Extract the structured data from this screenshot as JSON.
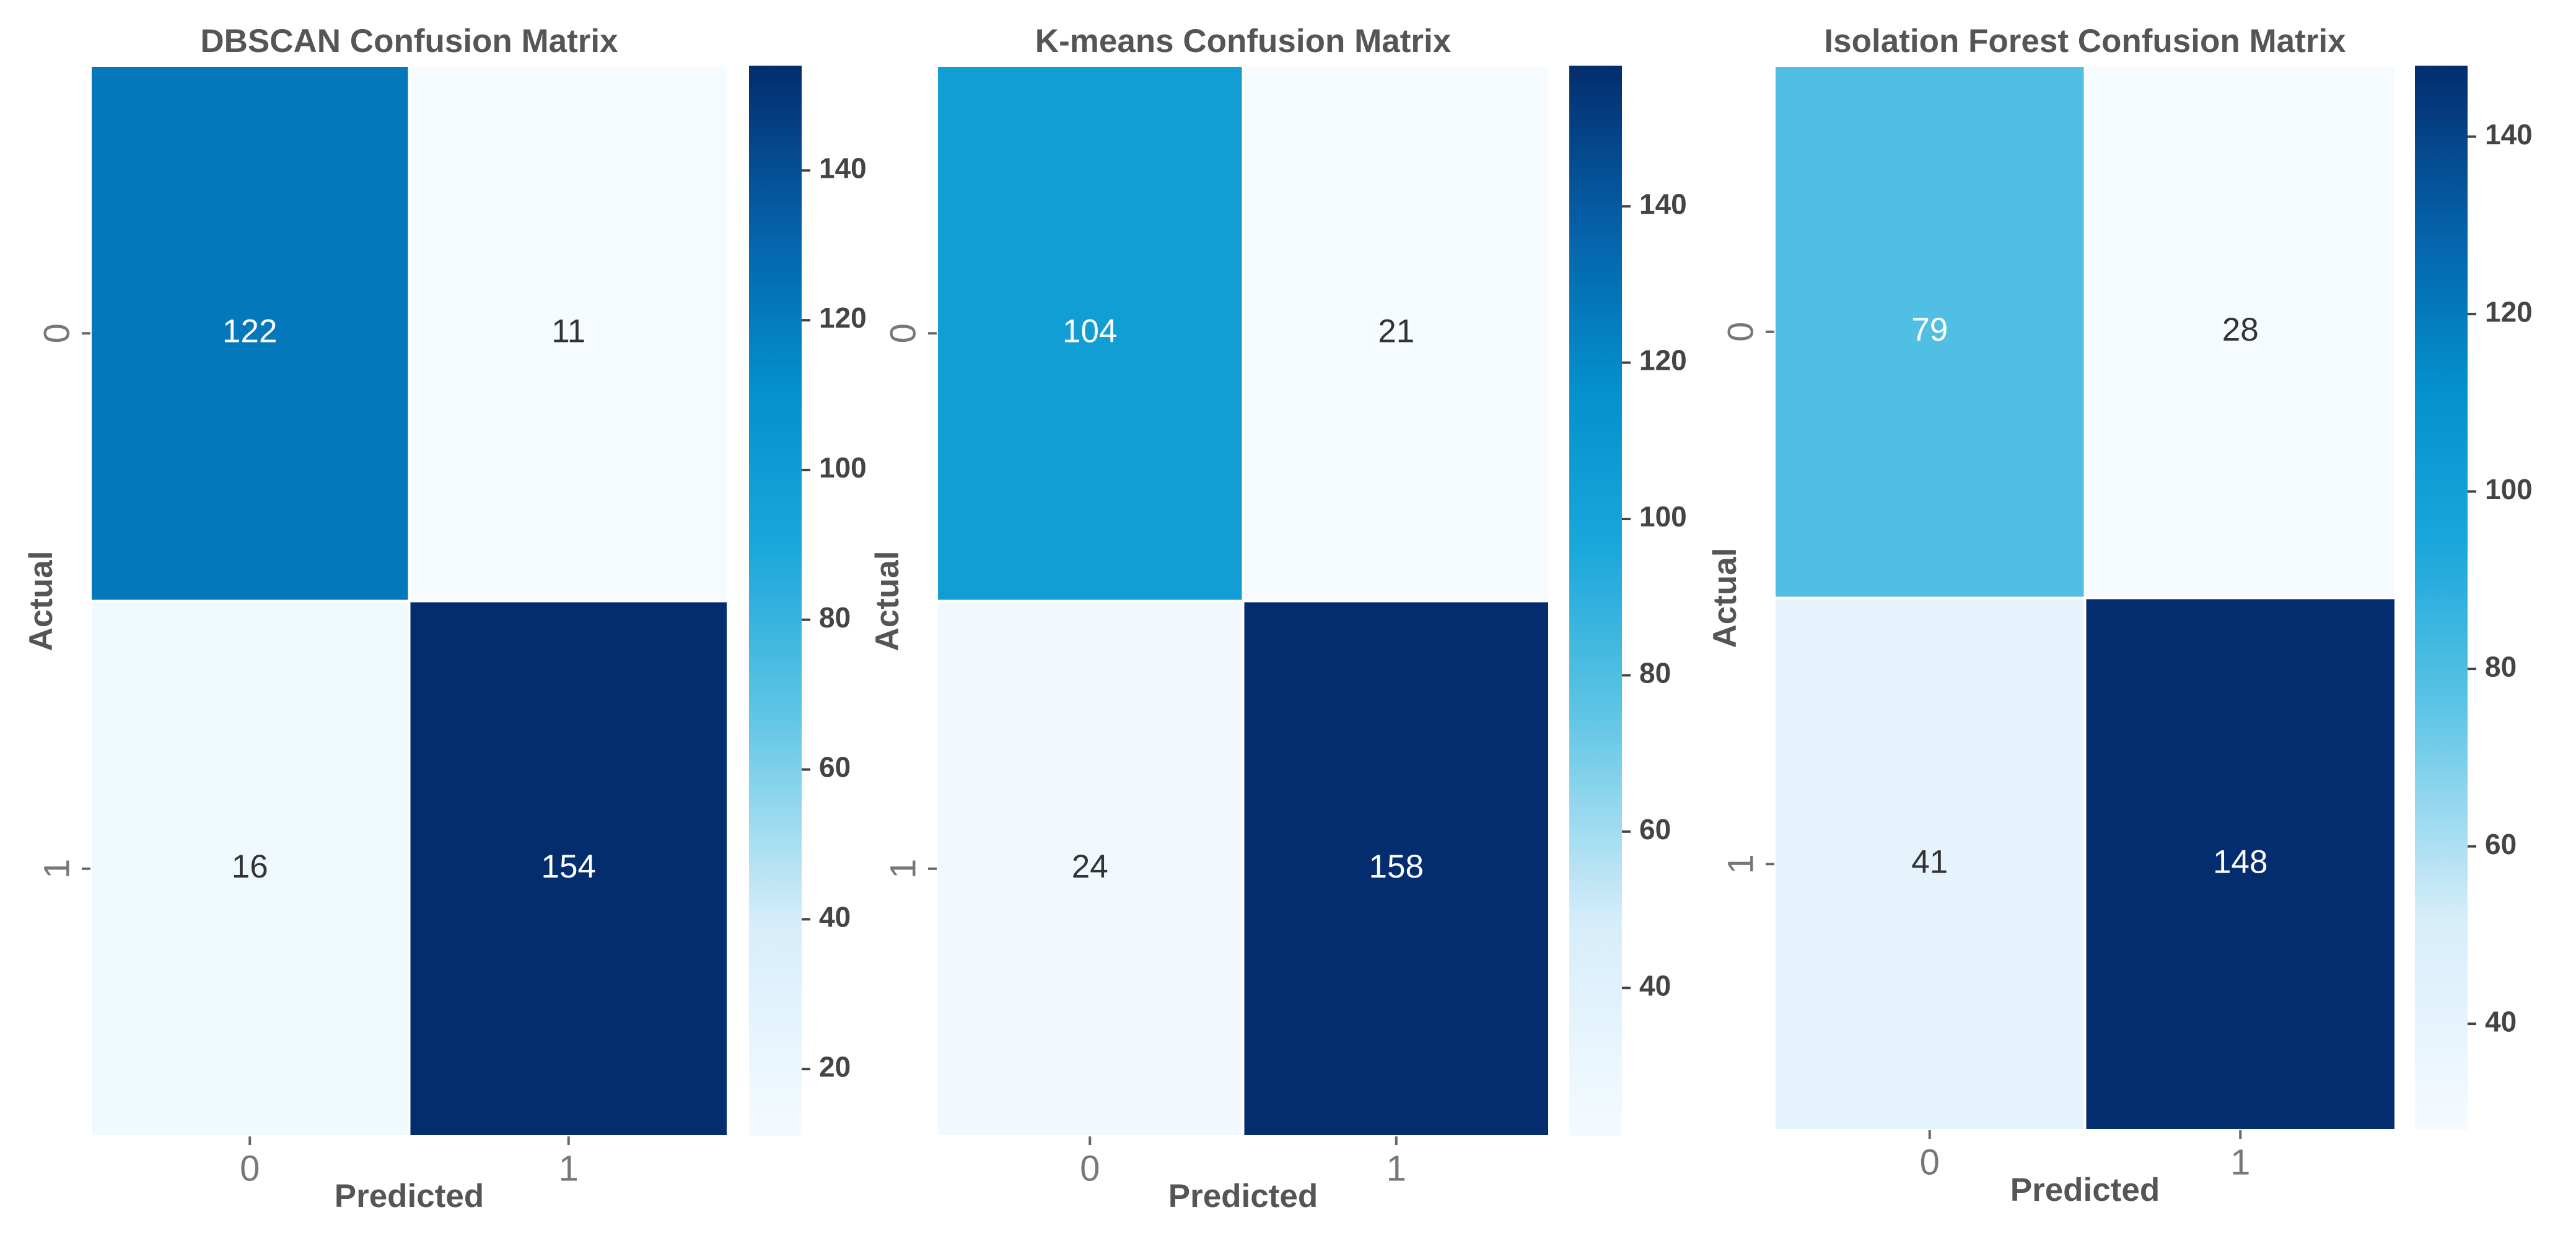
{
  "chart_data": [
    {
      "type": "heatmap",
      "title": "DBSCAN Confusion Matrix",
      "xlabel": "Predicted",
      "ylabel": "Actual",
      "x_categories": [
        "0",
        "1"
      ],
      "y_categories": [
        "0",
        "1"
      ],
      "values": [
        [
          122,
          11
        ],
        [
          16,
          154
        ]
      ],
      "cmap": "Blues",
      "clim": [
        11,
        154
      ],
      "cticks": [
        20,
        40,
        60,
        80,
        100,
        120,
        140
      ]
    },
    {
      "type": "heatmap",
      "title": "K-means Confusion Matrix",
      "xlabel": "Predicted",
      "ylabel": "Actual",
      "x_categories": [
        "0",
        "1"
      ],
      "y_categories": [
        "0",
        "1"
      ],
      "values": [
        [
          104,
          21
        ],
        [
          24,
          158
        ]
      ],
      "cmap": "Blues",
      "clim": [
        21,
        158
      ],
      "cticks": [
        40,
        60,
        80,
        100,
        120,
        140
      ]
    },
    {
      "type": "heatmap",
      "title": "Isolation Forest Confusion Matrix",
      "xlabel": "Predicted",
      "ylabel": "Actual",
      "x_categories": [
        "0",
        "1"
      ],
      "y_categories": [
        "0",
        "1"
      ],
      "values": [
        [
          79,
          28
        ],
        [
          41,
          148
        ]
      ],
      "cmap": "Blues",
      "clim": [
        28,
        148
      ],
      "cticks": [
        40,
        60,
        80,
        100,
        120,
        140
      ]
    }
  ]
}
